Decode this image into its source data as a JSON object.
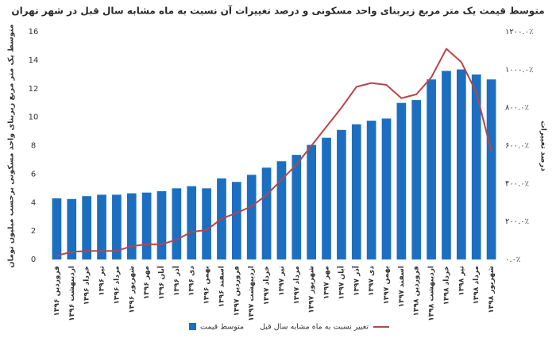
{
  "chart_data": {
    "type": "bar",
    "title": "متوسط قیمت یک متر مربع  زیربنای واحد مسکونی و درصد تغییرات آن نسبت به ماه مشابه سال قبل در شهر تهران",
    "y_label": "متوسط یک متر مربع زیربنای واحد مسکونی برحسب میلیون تومان",
    "y2_label": "درصد تغییرات",
    "categories": [
      "فروردین ۱۳۹۶",
      "اردیبهشت ۱۳۹۶",
      "خرداد ۱۳۹۶",
      "تیر ۱۳۹۶",
      "مرداد ۱۳۹۶",
      "شهریور ۱۳۹۶",
      "مهر ۱۳۹۶",
      "آبان ۱۳۹۶",
      "آذر ۱۳۹۶",
      "دی ۱۳۹۶",
      "بهمن ۱۳۹۶",
      "اسفند ۱۳۹۶",
      "فروردین ۱۳۹۷",
      "اردیبهشت ۱۳۹۷",
      "خرداد ۱۳۹۷",
      "تیر ۱۳۹۷",
      "مرداد ۱۳۹۷",
      "شهریور ۱۳۹۷",
      "مهر ۱۳۹۷",
      "آبان ۱۳۹۷",
      "آذر ۱۳۹۷",
      "دی ۱۳۹۷",
      "بهمن ۱۳۹۷",
      "اسفند ۱۳۹۷",
      "فروردین ۱۳۹۸",
      "اردیبهشت ۱۳۹۸",
      "خرداد ۱۳۹۸",
      "تیر ۱۳۹۸",
      "مرداد ۱۳۹۸",
      "شهریور ۱۳۹۸"
    ],
    "series": [
      {
        "name": "متوسط قیمت",
        "type": "bar",
        "color": "#1c6fc0",
        "values": [
          4.3,
          4.25,
          4.45,
          4.55,
          4.55,
          4.65,
          4.7,
          4.8,
          5.0,
          5.15,
          5.0,
          5.7,
          5.45,
          5.95,
          6.45,
          6.9,
          7.35,
          8.05,
          8.55,
          9.1,
          9.5,
          9.75,
          9.9,
          11.0,
          11.2,
          12.65,
          13.25,
          13.35,
          13.0,
          12.65
        ]
      },
      {
        "name": "تغییر نسبت به ماه مشابه سال قبل",
        "type": "line",
        "axis": "y2",
        "color": "#b5464a",
        "values": [
          20,
          40,
          45,
          45,
          45,
          70,
          80,
          80,
          105,
          145,
          155,
          215,
          245,
          280,
          340,
          420,
          500,
          600,
          700,
          800,
          910,
          930,
          920,
          850,
          870,
          960,
          1110,
          1040,
          880,
          570
        ]
      }
    ],
    "ylim": [
      0,
      16
    ],
    "yticks": [
      0,
      2,
      4,
      6,
      8,
      10,
      12,
      14,
      16
    ],
    "y2lim": [
      0,
      1200
    ],
    "y2ticks": [
      {
        "value": 0,
        "label": "۰.۰٪"
      },
      {
        "value": 200,
        "label": "۲۰۰.۰٪"
      },
      {
        "value": 400,
        "label": "۴۰۰.۰٪"
      },
      {
        "value": 600,
        "label": "۶۰۰.۰٪"
      },
      {
        "value": 800,
        "label": "۸۰۰.۰٪"
      },
      {
        "value": 1000,
        "label": "۱۰۰۰.۰٪"
      },
      {
        "value": 1200,
        "label": "۱۲۰۰.۰٪"
      }
    ]
  }
}
